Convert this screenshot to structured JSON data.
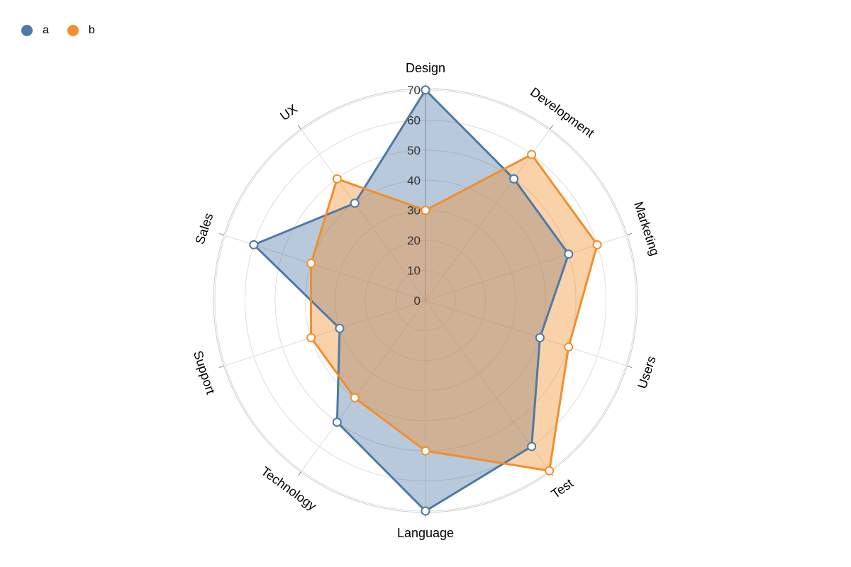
{
  "chart_data": {
    "type": "radar",
    "title": "",
    "axes": [
      "Design",
      "Development",
      "Marketing",
      "Users",
      "Test",
      "Language",
      "Technology",
      "Support",
      "Sales",
      "UX"
    ],
    "ticks": [
      0,
      10,
      20,
      30,
      40,
      50,
      60,
      70
    ],
    "rlim": [
      0,
      70
    ],
    "grid": true,
    "legend_position": "top-left",
    "series": [
      {
        "name": "a",
        "color": "#4e79a7",
        "values": [
          70,
          50,
          50,
          40,
          60,
          70,
          50,
          30,
          60,
          40
        ]
      },
      {
        "name": "b",
        "color": "#f28e2b",
        "values": [
          30,
          60,
          60,
          50,
          70,
          50,
          40,
          40,
          40,
          50
        ]
      }
    ]
  }
}
